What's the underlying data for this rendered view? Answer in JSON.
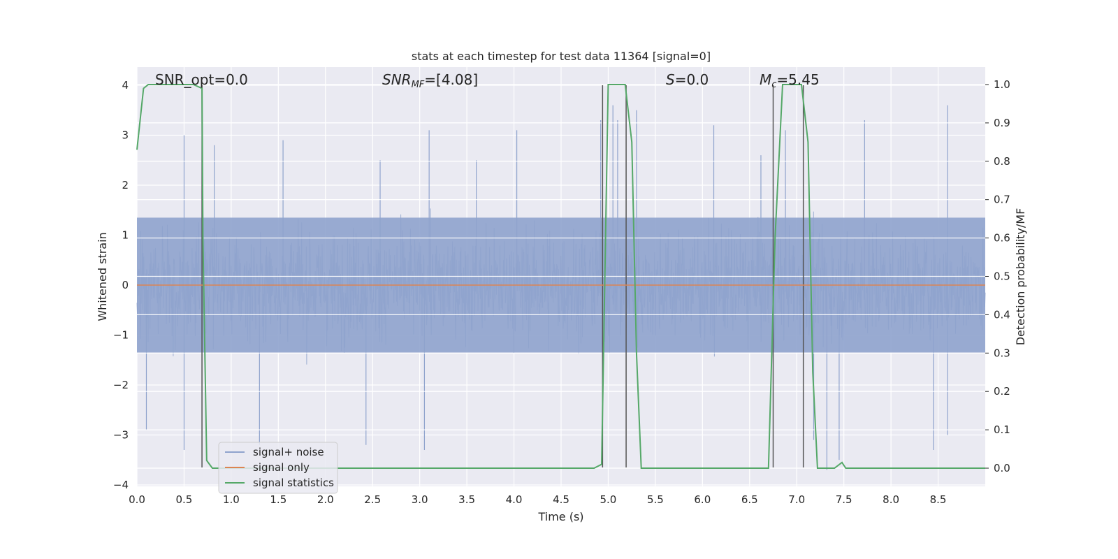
{
  "chart_data": {
    "type": "line",
    "title": "stats at each timestep for test data 11364 [signal=0]",
    "xlabel": "Time (s)",
    "ylabel": "Whitened strain",
    "y2label": "Detection probability/MF",
    "xlim": [
      0,
      9
    ],
    "ylim": [
      -4.0,
      4.3
    ],
    "y2lim": [
      -0.045,
      1.04
    ],
    "x_ticks": [
      "0.0",
      "0.5",
      "1.0",
      "1.5",
      "2.0",
      "2.5",
      "3.0",
      "3.5",
      "4.0",
      "4.5",
      "5.0",
      "5.5",
      "6.0",
      "6.5",
      "7.0",
      "7.5",
      "8.0",
      "8.5"
    ],
    "y_ticks": [
      "4",
      "3",
      "2",
      "1",
      "0",
      "−1",
      "−2",
      "−3",
      "−4"
    ],
    "y2_ticks": [
      "1.0",
      "0.9",
      "0.8",
      "0.7",
      "0.6",
      "0.5",
      "0.4",
      "0.3",
      "0.2",
      "0.1",
      "0.0"
    ],
    "grid": true,
    "legend_position": "lower-left",
    "annotations": {
      "snr_opt": "SNR_opt=0.0",
      "snr_mf": "SNR_MF=[4.08]",
      "s": "S=0.0",
      "mc": "M_c=5.45"
    },
    "series": [
      {
        "name": "signal+ noise",
        "color": "#8fa3cd",
        "axis": "left",
        "description_band": [
          -1.35,
          1.35
        ],
        "peaks": [
          [
            0.5,
            3.0
          ],
          [
            0.82,
            2.8
          ],
          [
            1.55,
            2.9
          ],
          [
            2.58,
            2.5
          ],
          [
            3.1,
            3.1
          ],
          [
            3.6,
            2.5
          ],
          [
            4.03,
            3.1
          ],
          [
            4.92,
            3.3
          ],
          [
            5.05,
            3.6
          ],
          [
            5.1,
            3.3
          ],
          [
            5.3,
            3.5
          ],
          [
            6.12,
            3.2
          ],
          [
            6.62,
            2.6
          ],
          [
            6.88,
            3.1
          ],
          [
            7.72,
            3.3
          ],
          [
            8.6,
            3.6
          ],
          [
            0.1,
            -2.9
          ],
          [
            0.5,
            -3.3
          ],
          [
            1.3,
            -3.2
          ],
          [
            2.43,
            -3.2
          ],
          [
            3.05,
            -3.3
          ],
          [
            7.18,
            -3.1
          ],
          [
            7.32,
            -3.7
          ],
          [
            8.45,
            -3.3
          ],
          [
            8.6,
            -3.0
          ],
          [
            7.45,
            -3.5
          ]
        ]
      },
      {
        "name": "signal only",
        "color": "#dd8452",
        "axis": "left",
        "x": [
          0,
          9
        ],
        "y": [
          0,
          0
        ]
      },
      {
        "name": "signal statistics",
        "color": "#55a868",
        "axis": "right",
        "x": [
          0.0,
          0.07,
          0.12,
          0.2,
          0.6,
          0.69,
          0.7,
          0.74,
          0.8,
          0.9,
          1.0,
          4.85,
          4.93,
          5.0,
          5.18,
          5.25,
          5.3,
          5.35,
          5.5,
          6.7,
          6.77,
          6.85,
          7.05,
          7.12,
          7.17,
          7.22,
          7.4,
          7.48,
          7.52,
          7.58,
          7.65,
          9.0
        ],
        "y": [
          0.83,
          0.99,
          1.0,
          1.0,
          1.0,
          0.99,
          0.6,
          0.02,
          0.0,
          0.0,
          0.0,
          0.0,
          0.01,
          1.0,
          1.0,
          0.85,
          0.3,
          0.0,
          0.0,
          0.0,
          0.6,
          1.0,
          1.0,
          0.85,
          0.25,
          0.0,
          0.0,
          0.015,
          0.0,
          0.0,
          0.0,
          0.0
        ]
      }
    ],
    "event_markers": [
      {
        "x": 0.69,
        "y1": -3.65,
        "y2": 4.0
      },
      {
        "x": 4.94,
        "y1": -3.65,
        "y2": 4.0
      },
      {
        "x": 5.19,
        "y1": -3.65,
        "y2": 4.0
      },
      {
        "x": 6.75,
        "y1": -3.65,
        "y2": 4.0
      },
      {
        "x": 7.07,
        "y1": -3.65,
        "y2": 4.0
      }
    ]
  }
}
